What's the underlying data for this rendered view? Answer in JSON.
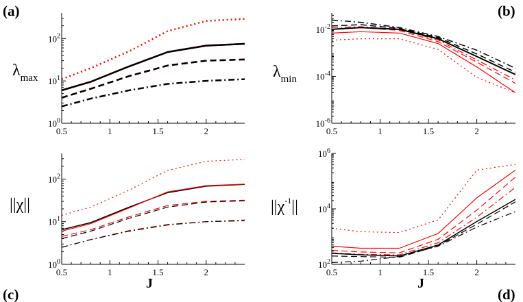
{
  "chart_data": [
    {
      "type": "line",
      "panel": "(a)",
      "ylabel": {
        "main": "λ",
        "sub": "max",
        "sup": ""
      },
      "xlabel": "",
      "yscale": "log",
      "xlim": [
        0.5,
        2.4
      ],
      "ylim": [
        1,
        400
      ],
      "xticks": [
        0.5,
        1,
        1.5,
        2
      ],
      "xtick_labels": [
        "0.5",
        "1",
        "1.5",
        "2"
      ],
      "yticks": [
        1,
        10,
        100
      ],
      "ytick_labels": [
        {
          "base": "10",
          "exp": "0"
        },
        {
          "base": "10",
          "exp": "1"
        },
        {
          "base": "10",
          "exp": "2"
        }
      ],
      "x": [
        0.5,
        0.8,
        1.2,
        1.6,
        2.0,
        2.4
      ],
      "series": [
        {
          "name": "red dotted",
          "color": "#ff0000",
          "style": "dotted",
          "width": 2.5,
          "values": [
            11,
            20,
            50,
            150,
            260,
            290
          ]
        },
        {
          "name": "red solid",
          "color": "#ff0000",
          "style": "solid",
          "width": 2.5,
          "values": [
            6,
            9.5,
            22,
            48,
            68,
            75
          ]
        },
        {
          "name": "black solid",
          "color": "#000000",
          "style": "solid",
          "width": 2.5,
          "values": [
            6,
            9.5,
            22,
            48,
            68,
            75
          ]
        },
        {
          "name": "red dashed",
          "color": "#ff0000",
          "style": "dashed",
          "width": 2.5,
          "values": [
            4,
            6.5,
            13,
            23,
            30,
            32
          ]
        },
        {
          "name": "black dashed",
          "color": "#000000",
          "style": "dashed",
          "width": 2.5,
          "values": [
            4,
            6.5,
            13,
            23,
            30,
            32
          ]
        },
        {
          "name": "black dash-dot",
          "color": "#000000",
          "style": "dashdot",
          "width": 2.5,
          "values": [
            2.5,
            3.8,
            6,
            8.5,
            10,
            11
          ]
        }
      ]
    },
    {
      "type": "line",
      "panel": "(b)",
      "ylabel": {
        "main": "λ",
        "sub": "min",
        "sup": ""
      },
      "xlabel": "",
      "yscale": "log",
      "xlim": [
        0.5,
        2.4
      ],
      "ylim": [
        1e-06,
        0.05
      ],
      "xticks": [
        0.5,
        1,
        1.5,
        2
      ],
      "xtick_labels": [
        "0.5",
        "1",
        "1.5",
        "2"
      ],
      "yticks": [
        1e-06,
        0.0001,
        0.01
      ],
      "ytick_labels": [
        {
          "base": "10",
          "exp": "-6"
        },
        {
          "base": "10",
          "exp": "-4"
        },
        {
          "base": "10",
          "exp": "-2"
        }
      ],
      "x": [
        0.5,
        0.8,
        1.2,
        1.6,
        2.0,
        2.4
      ],
      "series": [
        {
          "name": "red dotted",
          "color": "#ff0000",
          "style": "dotted",
          "width": 1.2,
          "values": [
            0.0035,
            0.004,
            0.004,
            0.0014,
            9e-05,
            2e-05
          ]
        },
        {
          "name": "red solid",
          "color": "#ff0000",
          "style": "solid",
          "width": 1.2,
          "values": [
            0.007,
            0.008,
            0.007,
            0.0025,
            0.00025,
            2e-05
          ]
        },
        {
          "name": "red dashed",
          "color": "#ff0000",
          "style": "dashed",
          "width": 1.2,
          "values": [
            0.01,
            0.012,
            0.009,
            0.003,
            0.0004,
            5e-05
          ]
        },
        {
          "name": "red dash-dot",
          "color": "#ff0000",
          "style": "dashdot",
          "width": 1.2,
          "values": [
            0.012,
            0.013,
            0.01,
            0.0035,
            0.0005,
            7e-05
          ]
        },
        {
          "name": "black solid",
          "color": "#000000",
          "style": "solid",
          "width": 2,
          "values": [
            0.01,
            0.012,
            0.01,
            0.004,
            0.0007,
            0.00012
          ]
        },
        {
          "name": "black dashed",
          "color": "#000000",
          "style": "dashed",
          "width": 1.5,
          "values": [
            0.014,
            0.016,
            0.011,
            0.0045,
            0.0009,
            0.00015
          ]
        },
        {
          "name": "black dash-dot",
          "color": "#000000",
          "style": "dashdot",
          "width": 1.5,
          "values": [
            0.025,
            0.02,
            0.012,
            0.005,
            0.0013,
            0.00022
          ]
        }
      ]
    },
    {
      "type": "line",
      "panel": "(c)",
      "ylabel": {
        "main": "||χ||",
        "sub": "",
        "sup": ""
      },
      "xlabel": "J",
      "yscale": "log",
      "xlim": [
        0.5,
        2.4
      ],
      "ylim": [
        1,
        400
      ],
      "xticks": [
        0.5,
        1,
        1.5,
        2
      ],
      "xtick_labels": [
        "0.5",
        "1",
        "1.5",
        "2"
      ],
      "yticks": [
        1,
        10,
        100
      ],
      "ytick_labels": [
        {
          "base": "10",
          "exp": "0"
        },
        {
          "base": "10",
          "exp": "1"
        },
        {
          "base": "10",
          "exp": "2"
        }
      ],
      "x": [
        0.5,
        0.8,
        1.2,
        1.6,
        2.0,
        2.4
      ],
      "series": [
        {
          "name": "red dotted",
          "color": "#ff0000",
          "style": "dotted",
          "width": 1.2,
          "values": [
            14,
            22,
            55,
            160,
            260,
            290
          ]
        },
        {
          "name": "black solid",
          "color": "#000000",
          "style": "solid",
          "width": 1.5,
          "values": [
            6.5,
            9.5,
            22,
            48,
            68,
            75
          ]
        },
        {
          "name": "red solid",
          "color": "#ff0000",
          "style": "solid",
          "width": 1.2,
          "values": [
            6,
            9,
            21,
            50,
            70,
            76
          ]
        },
        {
          "name": "red dashed",
          "color": "#ff0000",
          "style": "dashed",
          "width": 1.2,
          "values": [
            4.5,
            6.5,
            13,
            24,
            30,
            32
          ]
        },
        {
          "name": "black dashed",
          "color": "#000000",
          "style": "dashed",
          "width": 1.2,
          "values": [
            4,
            6,
            12,
            22,
            29,
            31
          ]
        },
        {
          "name": "red dash-dot",
          "color": "#ff0000",
          "style": "dashdot",
          "width": 1.2,
          "values": [
            2.5,
            3.8,
            6.2,
            8.6,
            10,
            11
          ]
        },
        {
          "name": "black dash-dot",
          "color": "#000000",
          "style": "dashdot",
          "width": 1.2,
          "values": [
            2.5,
            3.8,
            6,
            8.4,
            10,
            10.5
          ]
        }
      ]
    },
    {
      "type": "line",
      "panel": "(d)",
      "ylabel": {
        "main": "||χ",
        "sub": "",
        "sup": "-1",
        "suffix": "||"
      },
      "xlabel": "J",
      "yscale": "log",
      "xlim": [
        0.5,
        2.4
      ],
      "ylim": [
        100,
        1000000
      ],
      "xticks": [
        0.5,
        1,
        1.5,
        2
      ],
      "xtick_labels": [
        "0.5",
        "1",
        "1.5",
        "2"
      ],
      "yticks": [
        100,
        10000,
        1000000
      ],
      "ytick_labels": [
        {
          "base": "10",
          "exp": "2"
        },
        {
          "base": "10",
          "exp": "4"
        },
        {
          "base": "10",
          "exp": "6"
        }
      ],
      "x": [
        0.5,
        0.8,
        1.2,
        1.6,
        2.0,
        2.4
      ],
      "series": [
        {
          "name": "red dotted",
          "color": "#ff0000",
          "style": "dotted",
          "width": 1.2,
          "values": [
            2000,
            1500,
            1400,
            4000,
            250000,
            400000
          ]
        },
        {
          "name": "red solid",
          "color": "#ff0000",
          "style": "solid",
          "width": 1.2,
          "values": [
            450,
            380,
            380,
            1300,
            25000,
            250000
          ]
        },
        {
          "name": "red dashed",
          "color": "#ff0000",
          "style": "dashed",
          "width": 1.2,
          "values": [
            320,
            280,
            260,
            800,
            9000,
            140000
          ]
        },
        {
          "name": "red dash-dot",
          "color": "#ff0000",
          "style": "dashdot",
          "width": 1.2,
          "values": [
            260,
            230,
            220,
            600,
            5000,
            60000
          ]
        },
        {
          "name": "black solid",
          "color": "#000000",
          "style": "solid",
          "width": 1.5,
          "values": [
            250,
            220,
            200,
            500,
            3500,
            22000
          ]
        },
        {
          "name": "black dashed",
          "color": "#000000",
          "style": "dashed",
          "width": 1.2,
          "values": [
            200,
            190,
            180,
            470,
            2800,
            18000
          ]
        },
        {
          "name": "black dash-dot",
          "color": "#000000",
          "style": "dashdot",
          "width": 1.2,
          "values": [
            115,
            130,
            190,
            450,
            2200,
            8000
          ]
        }
      ]
    }
  ]
}
